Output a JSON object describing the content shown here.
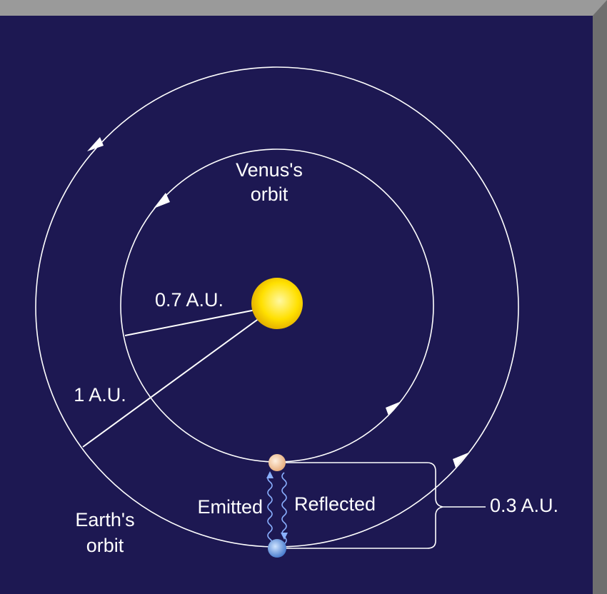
{
  "labels": {
    "venus_orbit": [
      "Venus's",
      "orbit"
    ],
    "venus_distance": "0.7 A.U.",
    "earth_distance": "1 A.U.",
    "earth_orbit": [
      "Earth's",
      "orbit"
    ],
    "emitted": "Emitted",
    "reflected": "Reflected",
    "separation": "0.3 A.U."
  }
}
